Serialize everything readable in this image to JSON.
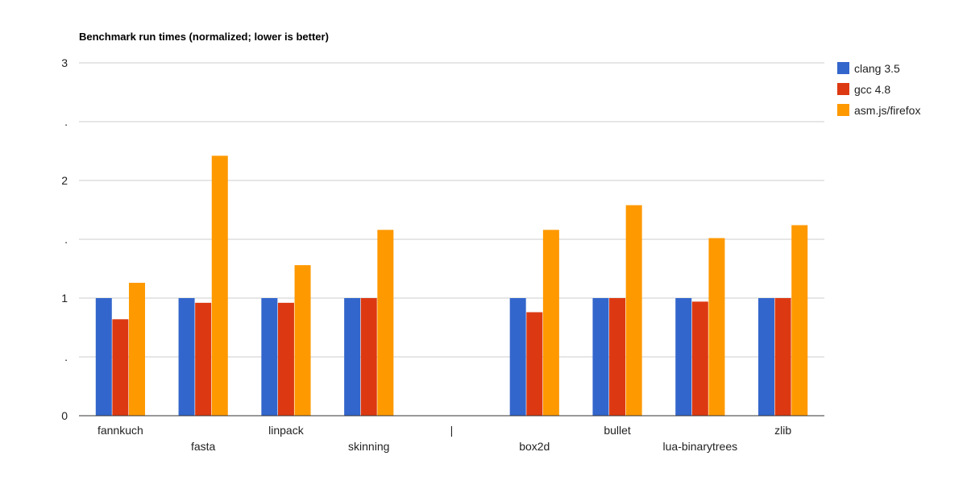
{
  "chart_data": {
    "type": "bar",
    "title": "Benchmark run times (normalized; lower is better)",
    "xlabel": "",
    "ylabel": "",
    "ylim": [
      0,
      3
    ],
    "y_ticks": [
      {
        "value": 0,
        "label": "0"
      },
      {
        "value": 0.5,
        "label": "."
      },
      {
        "value": 1,
        "label": "1"
      },
      {
        "value": 1.5,
        "label": "."
      },
      {
        "value": 2,
        "label": "2"
      },
      {
        "value": 2.5,
        "label": "."
      },
      {
        "value": 3,
        "label": "3"
      }
    ],
    "grid": true,
    "legend_position": "right",
    "categories": [
      "fannkuch",
      "fasta",
      "linpack",
      "skinning",
      "|",
      "box2d",
      "bullet",
      "lua-binarytrees",
      "zlib"
    ],
    "series": [
      {
        "name": "clang 3.5",
        "color": "#3366cc",
        "values": [
          1.0,
          1.0,
          1.0,
          1.0,
          null,
          1.0,
          1.0,
          1.0,
          1.0
        ]
      },
      {
        "name": "gcc 4.8",
        "color": "#dc3912",
        "values": [
          0.82,
          0.96,
          0.96,
          1.0,
          null,
          0.88,
          1.0,
          0.97,
          1.0
        ]
      },
      {
        "name": "asm.js/firefox",
        "color": "#ff9900",
        "values": [
          1.13,
          2.21,
          1.28,
          1.58,
          null,
          1.58,
          1.79,
          1.51,
          1.62
        ]
      }
    ]
  }
}
